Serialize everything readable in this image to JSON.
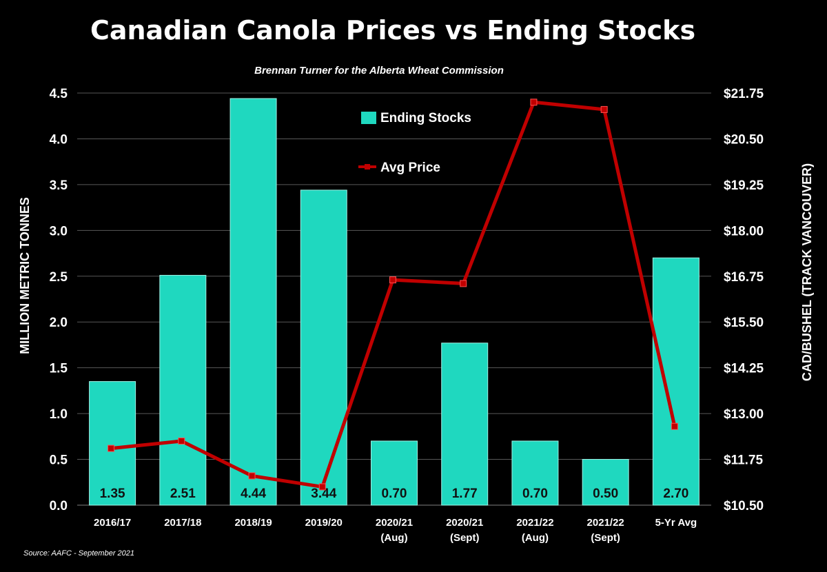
{
  "chart_data": {
    "type": "bar",
    "title": "Canadian Canola Prices vs Ending Stocks",
    "subtitle": "Brennan Turner for the Alberta Wheat Commission",
    "source": "Source: AAFC - September 2021",
    "categories": [
      [
        "2016/17"
      ],
      [
        "2017/18"
      ],
      [
        "2018/19"
      ],
      [
        "2019/20"
      ],
      [
        "2020/21",
        "(Aug)"
      ],
      [
        "2020/21",
        "(Sept)"
      ],
      [
        "2021/22",
        "(Aug)"
      ],
      [
        "2021/22",
        "(Sept)"
      ],
      [
        "5-Yr Avg"
      ]
    ],
    "ylabel": "MILLION METRIC TONNES",
    "y2label": "CAD/BUSHEL (TRACK VANCOUVER)",
    "ylim": [
      0,
      4.5
    ],
    "y2lim": [
      10.5,
      21.75
    ],
    "yticks": [
      "0.0",
      "0.5",
      "1.0",
      "1.5",
      "2.0",
      "2.5",
      "3.0",
      "3.5",
      "4.0",
      "4.5"
    ],
    "y2ticks": [
      "$10.50",
      "$11.75",
      "$13.00",
      "$14.25",
      "$15.50",
      "$16.75",
      "$18.00",
      "$19.25",
      "$20.50",
      "$21.75"
    ],
    "grid": true,
    "series": [
      {
        "name": "Ending Stocks",
        "type": "bar",
        "axis": "left",
        "color": "#1fd8bf",
        "values": [
          1.35,
          2.51,
          4.44,
          3.44,
          0.7,
          1.77,
          0.7,
          0.5,
          2.7
        ],
        "labels": [
          "1.35",
          "2.51",
          "4.44",
          "3.44",
          "0.70",
          "1.77",
          "0.70",
          "0.50",
          "2.70"
        ]
      },
      {
        "name": "Avg Price",
        "type": "line",
        "axis": "right",
        "color": "#c00000",
        "values": [
          12.05,
          12.25,
          11.3,
          11.0,
          16.65,
          16.55,
          21.5,
          21.3,
          12.65
        ]
      }
    ]
  }
}
